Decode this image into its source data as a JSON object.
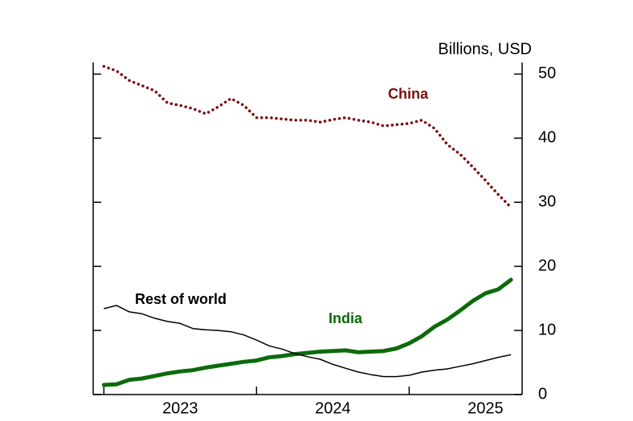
{
  "chart_data": {
    "type": "line",
    "y_label": "Billions, USD",
    "x": [
      2023,
      2023.083,
      2023.167,
      2023.25,
      2023.333,
      2023.417,
      2023.5,
      2023.583,
      2023.667,
      2023.75,
      2023.833,
      2023.917,
      2024,
      2024.083,
      2024.167,
      2024.25,
      2024.333,
      2024.417,
      2024.5,
      2024.583,
      2024.667,
      2024.75,
      2024.833,
      2024.917,
      2025,
      2025.083,
      2025.167,
      2025.25,
      2025.333,
      2025.417,
      2025.5,
      2025.583,
      2025.667
    ],
    "xlim": [
      2022.93,
      2025.74
    ],
    "xticks": [
      2023,
      2024,
      2025
    ],
    "ylim": [
      0,
      51.8
    ],
    "yticks": [
      0,
      10,
      20,
      30,
      40,
      50
    ],
    "series": [
      {
        "name": "China",
        "color": "#7b0d0d",
        "style": "dotted",
        "values": [
          51.2,
          50.5,
          49,
          48.2,
          47.4,
          45.5,
          45.1,
          44.6,
          43.8,
          44.9,
          46.2,
          45.1,
          43.2,
          43.2,
          43,
          42.8,
          42.8,
          42.5,
          42.9,
          43.2,
          42.8,
          42.5,
          41.9,
          42.1,
          42.3,
          42.8,
          41.5,
          39,
          37.5,
          35.5,
          33.4,
          31.2,
          29.2
        ]
      },
      {
        "name": "India",
        "color": "#0b6b0b",
        "style": "thick",
        "values": [
          1.5,
          1.6,
          2.3,
          2.5,
          2.9,
          3.3,
          3.6,
          3.8,
          4.2,
          4.5,
          4.8,
          5.1,
          5.3,
          5.8,
          6,
          6.3,
          6.5,
          6.7,
          6.8,
          6.9,
          6.6,
          6.7,
          6.8,
          7.2,
          8,
          9.1,
          10.6,
          11.7,
          13.1,
          14.6,
          15.8,
          16.4,
          17.9
        ]
      },
      {
        "name": "Rest of world",
        "color": "#000000",
        "style": "thin",
        "values": [
          13.4,
          13.9,
          12.9,
          12.6,
          11.9,
          11.4,
          11.1,
          10.3,
          10.1,
          10,
          9.8,
          9.3,
          8.5,
          7.6,
          7.1,
          6.4,
          5.9,
          5.5,
          4.7,
          4.1,
          3.5,
          3.1,
          2.8,
          2.8,
          3,
          3.5,
          3.8,
          4,
          4.4,
          4.8,
          5.3,
          5.8,
          6.2
        ]
      }
    ]
  }
}
